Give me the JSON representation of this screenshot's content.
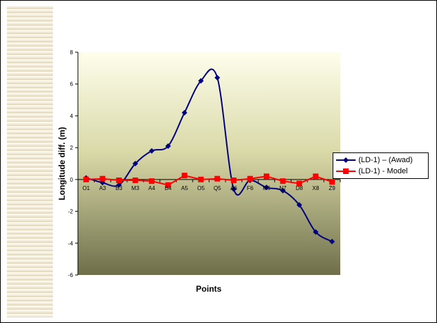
{
  "chart_data": {
    "type": "line",
    "title": "",
    "xlabel": "Points",
    "ylabel": "Longitude diff. (m)",
    "categories": [
      "O1",
      "A3",
      "B3",
      "M3",
      "A4",
      "B4",
      "A5",
      "O5",
      "Q5",
      "A6",
      "F6",
      "M6",
      "N7",
      "D8",
      "X8",
      "Z9"
    ],
    "ylim": [
      -6,
      8
    ],
    "yticks": [
      -6,
      -4,
      -2,
      0,
      2,
      4,
      6,
      8
    ],
    "grid": false,
    "legend_position": "right",
    "series": [
      {
        "name": "(LD-1) – (Awad)",
        "color": "#000080",
        "marker": "diamond",
        "smooth": true,
        "values": [
          0.1,
          -0.2,
          -0.35,
          1.0,
          1.8,
          2.1,
          4.2,
          6.2,
          6.4,
          -0.6,
          -0.05,
          -0.5,
          -0.7,
          -1.6,
          -3.3,
          -3.9
        ]
      },
      {
        "name": "(LD-1) - Model",
        "color": "#ff0000",
        "marker": "square",
        "smooth": false,
        "values": [
          0.0,
          0.05,
          -0.05,
          -0.05,
          -0.1,
          -0.35,
          0.25,
          0.0,
          0.05,
          -0.05,
          0.05,
          0.2,
          -0.1,
          -0.25,
          0.2,
          -0.15
        ]
      }
    ]
  }
}
